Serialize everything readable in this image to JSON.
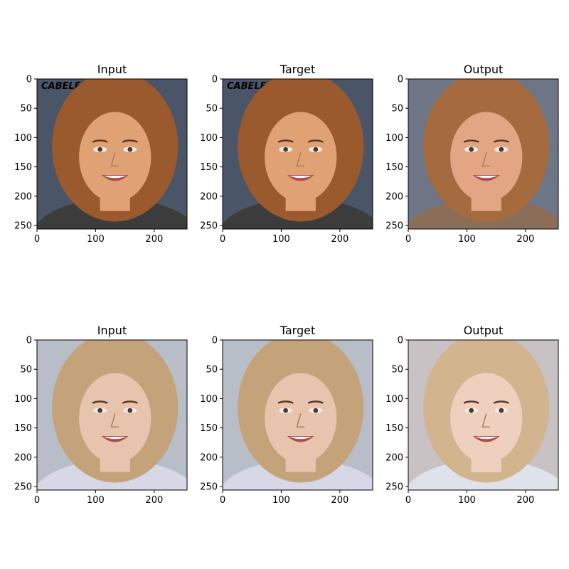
{
  "panels": [
    {
      "id": "p1",
      "title": "Input",
      "face": {
        "skin": "#e0a274",
        "hair": "#9a5a2e",
        "bg": "#4a5568",
        "clothes": "#3c3c3c",
        "sign": "CABELEIR"
      }
    },
    {
      "id": "p2",
      "title": "Target",
      "face": {
        "skin": "#e0a274",
        "hair": "#9a5a2e",
        "bg": "#4a5568",
        "clothes": "#3c3c3c",
        "sign": "CABELEIR"
      }
    },
    {
      "id": "p3",
      "title": "Output",
      "face": {
        "skin": "#e2a684",
        "hair": "#a56a3e",
        "bg": "#6e7686",
        "clothes": "#8c6e58",
        "sign": ""
      }
    },
    {
      "id": "p4",
      "title": "Input",
      "face": {
        "skin": "#e8c3ad",
        "hair": "#c4a27a",
        "bg": "#b8bec8",
        "clothes": "#d7d7e5",
        "sign": ""
      }
    },
    {
      "id": "p5",
      "title": "Target",
      "face": {
        "skin": "#e8c3ad",
        "hair": "#c4a27a",
        "bg": "#b8bec8",
        "clothes": "#d7d7e5",
        "sign": ""
      }
    },
    {
      "id": "p6",
      "title": "Output",
      "face": {
        "skin": "#efd0bf",
        "hair": "#d2b48f",
        "bg": "#c8c2c4",
        "clothes": "#dfe2ea",
        "sign": ""
      }
    }
  ],
  "xticks": [
    "0",
    "100",
    "200"
  ],
  "yticks": [
    "0",
    "50",
    "100",
    "150",
    "200",
    "250"
  ],
  "colors": {
    "axis": "#000000",
    "background": "#ffffff"
  }
}
